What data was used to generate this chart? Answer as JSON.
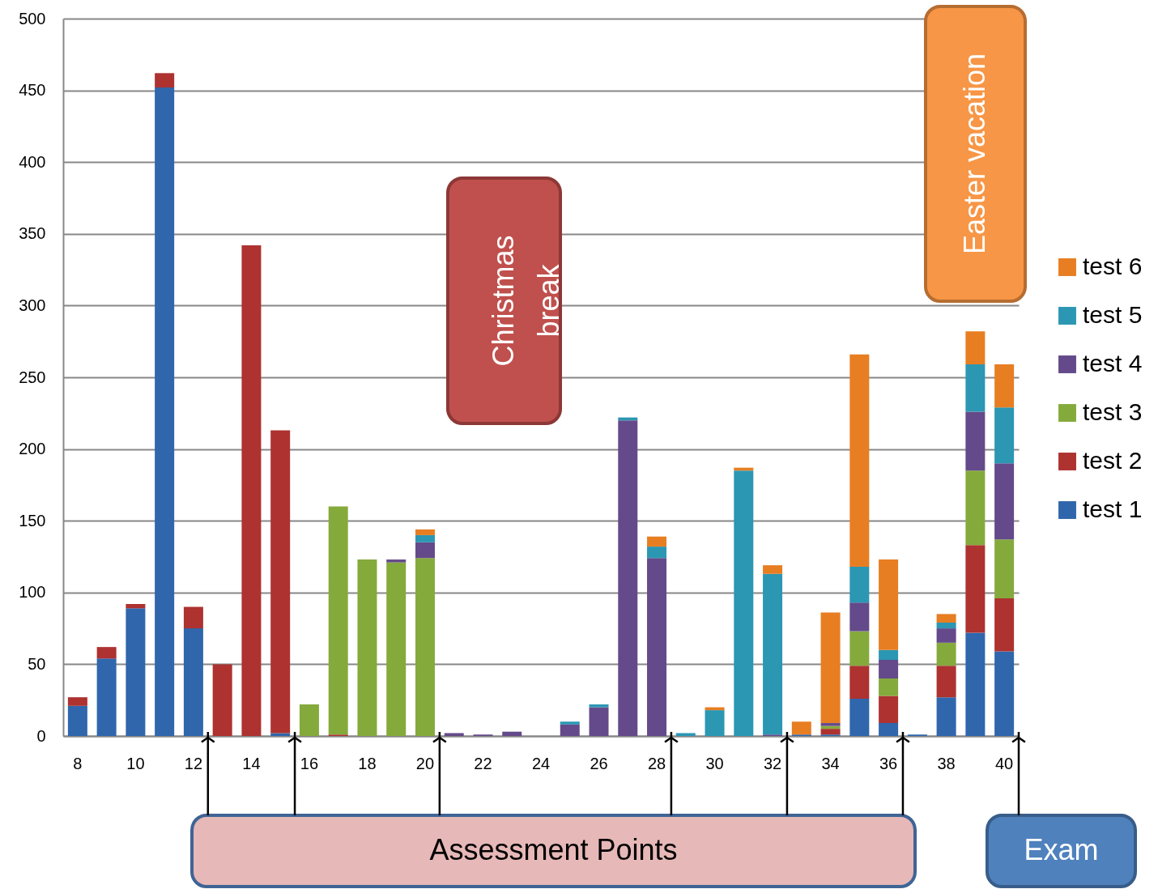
{
  "chart_data": {
    "type": "bar",
    "stacked": true,
    "categories": [
      "8",
      null,
      "10",
      null,
      "12",
      null,
      "14",
      null,
      "16",
      null,
      "18",
      null,
      "20",
      null,
      "22",
      null,
      "24",
      null,
      "26",
      null,
      "28",
      null,
      "30",
      null,
      "32",
      null,
      "34",
      null,
      "36",
      null,
      "38",
      null,
      "40"
    ],
    "series": [
      {
        "name": "test 1",
        "color": "#3066ac",
        "values": [
          21,
          54,
          89,
          452,
          75,
          0,
          0,
          2,
          0,
          0,
          0,
          0,
          0,
          0,
          0,
          0,
          0,
          0,
          0,
          0,
          0,
          0,
          0,
          0,
          0,
          1,
          1,
          26,
          9,
          1,
          27,
          72,
          59
        ]
      },
      {
        "name": "test 2",
        "color": "#ad3230",
        "values": [
          6,
          8,
          3,
          10,
          15,
          50,
          342,
          211,
          0,
          1,
          0,
          0,
          0,
          0,
          0,
          0,
          0,
          0,
          0,
          0,
          0,
          0,
          0,
          0,
          0,
          0,
          4,
          23,
          19,
          0,
          22,
          61,
          37
        ]
      },
      {
        "name": "test 3",
        "color": "#85aa3c",
        "values": [
          0,
          0,
          0,
          0,
          0,
          0,
          0,
          0,
          22,
          159,
          123,
          121,
          124,
          0,
          0,
          0,
          0,
          0,
          0,
          0,
          0,
          0,
          0,
          0,
          0,
          0,
          2,
          24,
          12,
          0,
          16,
          52,
          41
        ]
      },
      {
        "name": "test 4",
        "color": "#644a8a",
        "values": [
          0,
          0,
          0,
          0,
          0,
          0,
          0,
          0,
          0,
          0,
          0,
          2,
          11,
          2,
          1,
          3,
          0,
          8,
          20,
          220,
          124,
          0,
          0,
          0,
          1,
          0,
          2,
          20,
          13,
          0,
          10,
          41,
          53
        ]
      },
      {
        "name": "test 5",
        "color": "#2b97b3",
        "values": [
          0,
          0,
          0,
          0,
          0,
          0,
          0,
          0,
          0,
          0,
          0,
          0,
          5,
          0,
          0,
          0,
          0,
          2,
          2,
          2,
          8,
          2,
          18,
          185,
          112,
          0,
          0,
          25,
          7,
          0,
          4,
          33,
          39
        ]
      },
      {
        "name": "test 6",
        "color": "#e77e22",
        "values": [
          0,
          0,
          0,
          0,
          0,
          0,
          0,
          0,
          0,
          0,
          0,
          0,
          4,
          0,
          0,
          0,
          0,
          0,
          0,
          0,
          7,
          0,
          2,
          2,
          6,
          9,
          77,
          148,
          63,
          0,
          6,
          23,
          30
        ]
      }
    ],
    "ylim": [
      0,
      500
    ],
    "yticks": [
      0,
      50,
      100,
      150,
      200,
      250,
      300,
      350,
      400,
      450,
      500
    ],
    "grid": "y",
    "legend": "right",
    "annotations": [
      "Christmas break",
      "Easter vacation",
      "Assessment Points",
      "Exam"
    ]
  }
}
